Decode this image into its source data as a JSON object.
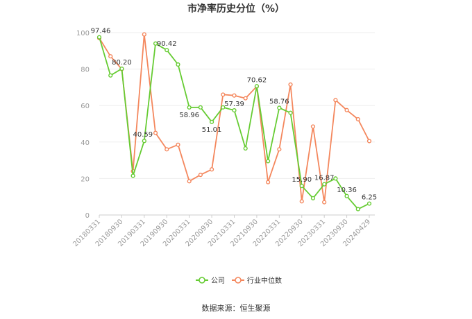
{
  "chart_data": {
    "type": "line",
    "title": "市净率历史分位（%）",
    "xlabel": "",
    "ylabel": "",
    "ylim": [
      0,
      100
    ],
    "yticks": [
      0,
      20,
      40,
      60,
      80,
      100
    ],
    "grid": true,
    "legend_position": "bottom",
    "x_tick_labels": [
      "20180331",
      "20180930",
      "20190331",
      "20190930",
      "20200331",
      "20200930",
      "20210331",
      "20210930",
      "20220331",
      "20220930",
      "20230331",
      "20230930",
      "20240429"
    ],
    "x": [
      "20180331",
      "20180630",
      "20180930",
      "20181231",
      "20190331",
      "20190630",
      "20190930",
      "20191231",
      "20200331",
      "20200630",
      "20200930",
      "20201231",
      "20210331",
      "20210630",
      "20210930",
      "20211231",
      "20220331",
      "20220630",
      "20220930",
      "20221231",
      "20230331",
      "20230630",
      "20230930",
      "20231231",
      "20240429"
    ],
    "series": [
      {
        "name": "公司",
        "color": "#66cc33",
        "values": [
          97.46,
          76.5,
          80.2,
          21.5,
          40.59,
          94.0,
          90.42,
          82.5,
          58.96,
          59.0,
          51.01,
          59.0,
          57.39,
          36.5,
          70.62,
          29.5,
          58.76,
          56.0,
          15.9,
          9.2,
          16.87,
          20.0,
          10.36,
          3.2,
          6.25
        ]
      },
      {
        "name": "行业中位数",
        "color": "#f4875d",
        "values": [
          97.0,
          87.0,
          80.0,
          24.0,
          99.0,
          45.0,
          36.0,
          38.5,
          18.5,
          22.0,
          25.0,
          66.0,
          65.5,
          64.0,
          70.5,
          18.0,
          36.0,
          71.5,
          7.5,
          48.5,
          7.0,
          63.0,
          57.5,
          52.5,
          40.5
        ]
      }
    ],
    "data_labels": [
      {
        "series": 0,
        "index": 0,
        "text": "97.46"
      },
      {
        "series": 0,
        "index": 2,
        "text": "80.20"
      },
      {
        "series": 0,
        "index": 4,
        "text": "40.59"
      },
      {
        "series": 0,
        "index": 6,
        "text": "90.42"
      },
      {
        "series": 0,
        "index": 8,
        "text": "58.96"
      },
      {
        "series": 0,
        "index": 10,
        "text": "51.01"
      },
      {
        "series": 0,
        "index": 12,
        "text": "57.39"
      },
      {
        "series": 0,
        "index": 14,
        "text": "70.62"
      },
      {
        "series": 0,
        "index": 16,
        "text": "58.76"
      },
      {
        "series": 0,
        "index": 18,
        "text": "15.90"
      },
      {
        "series": 0,
        "index": 20,
        "text": "16.87"
      },
      {
        "series": 0,
        "index": 22,
        "text": "10.36"
      },
      {
        "series": 0,
        "index": 24,
        "text": "6.25"
      }
    ]
  },
  "source_text": "数据来源：恒生聚源",
  "colors": {
    "axis": "#cccccc",
    "grid": "#eeeeee",
    "tick_text": "#999999"
  }
}
